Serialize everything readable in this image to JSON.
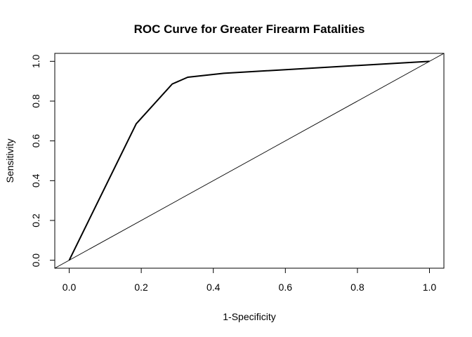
{
  "chart_data": {
    "type": "line",
    "title": "ROC Curve for Greater Firearm Fatalities",
    "xlabel": "1-Specificity",
    "ylabel": "Sensitivity",
    "xlim": [
      -0.04,
      1.04
    ],
    "ylim": [
      -0.04,
      1.04
    ],
    "xticks": [
      "0.0",
      "0.2",
      "0.4",
      "0.6",
      "0.8",
      "1.0"
    ],
    "yticks": [
      "0.0",
      "0.2",
      "0.4",
      "0.6",
      "0.8",
      "1.0"
    ],
    "grid": false,
    "series": [
      {
        "x": [
          0.0,
          0.186,
          0.286,
          0.329,
          0.429,
          1.0
        ],
        "y": [
          0.0,
          0.686,
          0.886,
          0.92,
          0.94,
          1.0
        ]
      }
    ],
    "reference_line": {
      "x": [
        -0.04,
        1.04
      ],
      "y": [
        -0.04,
        1.04
      ]
    }
  }
}
